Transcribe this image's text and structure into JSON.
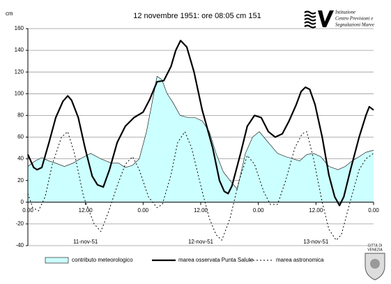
{
  "chart_data": {
    "type": "line",
    "title": "12 novembre 1951: ore 08:05 cm 151",
    "y_label": "cm",
    "logo_text": [
      "Istituzione",
      "Centro Previsioni e",
      "Segnalazioni Maree"
    ],
    "city_text": [
      "CITTÀ DI",
      "VENEZIA"
    ],
    "ylim": [
      -40,
      160
    ],
    "yticks": [
      -40,
      -20,
      0,
      20,
      40,
      60,
      80,
      100,
      120,
      140,
      160
    ],
    "xlim": [
      0,
      72
    ],
    "xticks": [
      {
        "value": 0,
        "label": "0.00"
      },
      {
        "value": 12,
        "label": "12.00"
      },
      {
        "value": 24,
        "label": "0.00"
      },
      {
        "value": 36,
        "label": "12.00"
      },
      {
        "value": 48,
        "label": "0.00"
      },
      {
        "value": 60,
        "label": "12.00"
      },
      {
        "value": 72,
        "label": "0.00"
      }
    ],
    "x_annotations": [
      {
        "x": 12,
        "label": "11-nov-51"
      },
      {
        "x": 36,
        "label": "12-nov-51"
      },
      {
        "x": 60,
        "label": "13-nov-51"
      }
    ],
    "grid": true,
    "legend": "bottom",
    "series": [
      {
        "name": "contributo meteorologico",
        "type": "area",
        "color": "#ccffff",
        "x": [
          0,
          1.5,
          2.9,
          4.4,
          5.8,
          7.6,
          9.4,
          10.9,
          13.1,
          15.2,
          17.4,
          18.9,
          20.3,
          21.8,
          23.2,
          24.7,
          25.8,
          26.9,
          27.9,
          29,
          30.2,
          31.7,
          33.4,
          34.8,
          36.3,
          37.8,
          39.2,
          40.7,
          42.1,
          43.6,
          45.3,
          46.8,
          48.2,
          50.1,
          52,
          53.7,
          55.2,
          56.6,
          58.1,
          59.5,
          61,
          62.7,
          64.6,
          66.1,
          67.5,
          69,
          70.4,
          72
        ],
        "values": [
          33,
          38,
          41,
          38,
          36,
          33,
          36,
          40,
          45,
          40,
          36,
          36,
          32,
          34,
          40,
          65,
          90,
          116,
          113,
          100,
          92,
          80,
          78,
          78,
          75,
          65,
          45,
          28,
          20,
          12,
          45,
          60,
          65,
          55,
          45,
          42,
          40,
          38,
          44,
          45,
          42,
          33,
          30,
          33,
          38,
          42,
          46,
          48
        ]
      },
      {
        "name": "marea osservata Punta Salute",
        "type": "line",
        "color": "#000000",
        "dash": "solid",
        "x": [
          0,
          1.2,
          1.9,
          2.9,
          4.4,
          5.8,
          7.3,
          8.3,
          9.1,
          10.5,
          11.9,
          13.4,
          14.5,
          15.7,
          17,
          18.6,
          20.3,
          22.1,
          24,
          25.4,
          26.9,
          28.3,
          29.8,
          30.8,
          31.8,
          33.1,
          34.6,
          36.3,
          38.5,
          39.9,
          40.9,
          41.7,
          42.5,
          44.3,
          45.7,
          47.2,
          48.6,
          50.1,
          51.5,
          53,
          54.4,
          55.9,
          56.9,
          57.8,
          58.7,
          59.8,
          61.3,
          62.7,
          63.9,
          64.9,
          65.8,
          67.2,
          69,
          70.4,
          71.1,
          72
        ],
        "values": [
          44,
          32,
          30,
          32,
          55,
          78,
          93,
          98,
          94,
          78,
          50,
          24,
          16,
          14,
          30,
          55,
          70,
          78,
          83,
          95,
          111,
          112,
          125,
          140,
          149,
          143,
          120,
          85,
          50,
          20,
          10,
          8,
          15,
          45,
          70,
          80,
          78,
          65,
          60,
          63,
          75,
          90,
          102,
          106,
          104,
          90,
          60,
          25,
          5,
          -3,
          5,
          30,
          60,
          80,
          88,
          85
        ]
      },
      {
        "name": "marea astronomica",
        "type": "line",
        "color": "#000000",
        "dash": "dotted",
        "x": [
          0,
          1,
          2.2,
          3.6,
          5.1,
          7,
          8.3,
          9.7,
          11.6,
          13.8,
          15.2,
          16.7,
          18.6,
          20.3,
          21.8,
          23.2,
          25.1,
          26.9,
          28,
          29.8,
          31.2,
          32.7,
          34.1,
          36.3,
          37.8,
          39.2,
          40.4,
          42.1,
          44,
          45.7,
          47.2,
          49.1,
          50.5,
          52,
          53.7,
          55.6,
          57.1,
          58.1,
          59.5,
          61.3,
          62.7,
          64.2,
          65.3,
          67.1,
          69,
          70.4,
          72
        ],
        "values": [
          8,
          -5,
          -8,
          5,
          35,
          60,
          65,
          45,
          5,
          -20,
          -27,
          -10,
          15,
          35,
          42,
          30,
          5,
          -5,
          -2,
          25,
          55,
          65,
          50,
          10,
          -15,
          -30,
          -35,
          -15,
          20,
          43,
          35,
          10,
          -2,
          -2,
          20,
          50,
          63,
          65,
          40,
          0,
          -25,
          -35,
          -30,
          0,
          30,
          40,
          45
        ]
      }
    ]
  }
}
